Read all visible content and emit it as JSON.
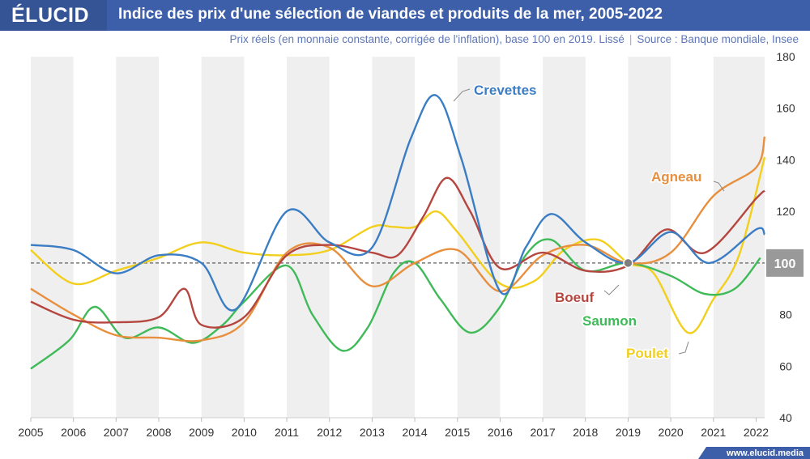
{
  "header": {
    "logo": "ÉLUCID",
    "title": "Indice des prix d'une sélection de viandes et produits de la mer, 2005-2022"
  },
  "subtitle": {
    "text": "Prix réels (en monnaie constante, corrigée de l'inflation), base 100 en 2019. Lissé",
    "source": "Source : Banque mondiale, Insee"
  },
  "footer": {
    "site": "www.elucid.media"
  },
  "colors": {
    "Crevettes": "#3b7dc4",
    "Agneau": "#e88f3e",
    "Boeuf": "#b5463f",
    "Saumon": "#3fba58",
    "Poulet": "#f2cf1c",
    "header": "#3d5fa9",
    "band": "#efefef",
    "reference": "#777777"
  },
  "chart_data": {
    "type": "line",
    "x": [
      2005,
      2006,
      2007,
      2008,
      2009,
      2010,
      2011,
      2012,
      2013,
      2014,
      2015,
      2016,
      2017,
      2018,
      2019,
      2020,
      2021,
      2022
    ],
    "xlim": [
      2005,
      2022.2
    ],
    "ylim": [
      40,
      180
    ],
    "yticks": [
      40,
      60,
      80,
      100,
      120,
      140,
      160,
      180
    ],
    "reference_line": 100,
    "reference_label": "100",
    "series": [
      {
        "name": "Crevettes",
        "x": [
          2005,
          2006,
          2007,
          2008,
          2009,
          2009.8,
          2011,
          2012,
          2013,
          2013.9,
          2014.5,
          2015.1,
          2016,
          2016.6,
          2017.2,
          2018,
          2019,
          2020,
          2020.9,
          2022,
          2022.2
        ],
        "y": [
          107,
          105,
          96,
          103,
          100,
          82,
          120,
          108,
          106,
          148,
          165,
          140,
          89,
          106,
          119,
          108,
          100,
          112,
          100,
          113,
          111
        ]
      },
      {
        "name": "Agneau",
        "x": [
          2005,
          2006,
          2007,
          2008,
          2009,
          2010,
          2011,
          2012,
          2013,
          2014,
          2015,
          2016,
          2017,
          2018,
          2019,
          2020,
          2021,
          2022,
          2022.2
        ],
        "y": [
          90,
          80,
          72,
          71,
          70,
          77,
          104,
          106,
          91,
          100,
          105,
          89,
          103,
          107,
          100,
          104,
          126,
          137,
          149
        ]
      },
      {
        "name": "Boeuf",
        "x": [
          2005,
          2006,
          2007,
          2008,
          2008.6,
          2009,
          2010,
          2011,
          2012,
          2013,
          2013.6,
          2014.2,
          2014.75,
          2015.3,
          2016,
          2017,
          2018,
          2019,
          2019.9,
          2020.8,
          2022,
          2022.2
        ],
        "y": [
          85,
          78,
          77,
          79,
          90,
          76,
          79,
          103,
          107,
          104,
          103,
          118,
          133,
          120,
          98,
          104,
          97,
          99,
          113,
          104,
          125,
          128
        ]
      },
      {
        "name": "Saumon",
        "x": [
          2005,
          2005.9,
          2006.5,
          2007.2,
          2008,
          2008.8,
          2009.5,
          2010,
          2011,
          2011.6,
          2012.3,
          2012.9,
          2013.5,
          2014,
          2014.6,
          2015.3,
          2016,
          2016.6,
          2017.2,
          2018,
          2019,
          2020,
          2020.8,
          2021.5,
          2022.1
        ],
        "y": [
          59,
          70,
          83,
          71,
          75,
          69,
          76,
          85,
          99,
          80,
          66,
          75,
          96,
          100,
          86,
          73,
          83,
          103,
          109,
          97,
          100,
          95,
          88,
          90,
          102
        ]
      },
      {
        "name": "Poulet",
        "x": [
          2005,
          2006,
          2007,
          2008,
          2009,
          2010,
          2011,
          2012,
          2013,
          2013.5,
          2014,
          2014.5,
          2015,
          2016,
          2016.8,
          2017.5,
          2018.3,
          2019,
          2019.6,
          2020.4,
          2021,
          2021.6,
          2022.2
        ],
        "y": [
          105,
          92,
          97,
          102,
          108,
          104,
          103,
          105,
          114,
          114,
          114,
          120,
          112,
          92,
          93,
          105,
          109,
          100,
          96,
          73,
          86,
          103,
          141
        ]
      }
    ],
    "labels": [
      {
        "series": "Crevettes",
        "text": "Crevettes"
      },
      {
        "series": "Agneau",
        "text": "Agneau"
      },
      {
        "series": "Boeuf",
        "text": "Boeuf"
      },
      {
        "series": "Saumon",
        "text": "Saumon"
      },
      {
        "series": "Poulet",
        "text": "Poulet"
      }
    ],
    "marker": {
      "x": 2019,
      "y": 100
    }
  }
}
